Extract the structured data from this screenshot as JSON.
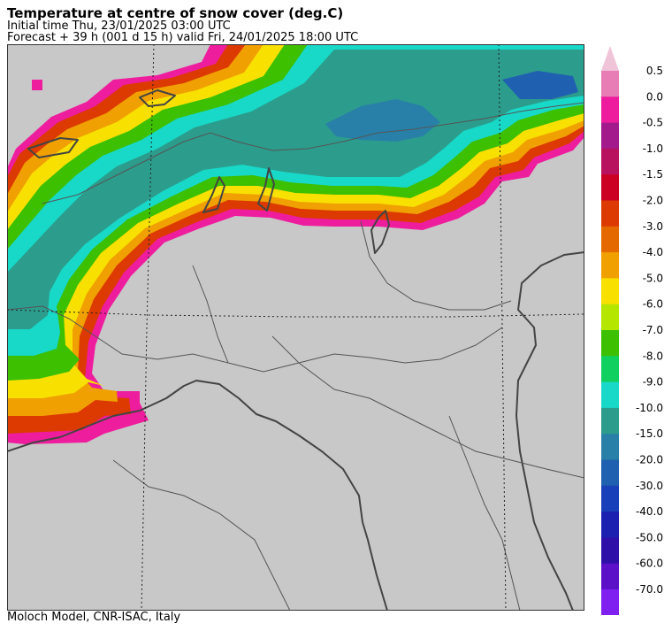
{
  "header": {
    "title": "Temperature at centre of snow cover (deg.C)",
    "initial_time": "Initial time  Thu, 23/01/2025  03:00 UTC",
    "forecast": "Forecast  +  39 h  (001 d 15 h)  valid Fri, 24/01/2025 18:00 UTC"
  },
  "credit": "Moloch Model, CNR-ISAC, Italy",
  "colors": {
    "land_no_snow": "#c8c8c8",
    "frame": "#333333",
    "coastline": "#444444",
    "borders": "#555555",
    "graticule": "#222222"
  },
  "legend": {
    "over_color": "#f0c4d8",
    "under_color": "#b07cf0",
    "classes": [
      {
        "label": "0.5",
        "color": "#e87cb4"
      },
      {
        "label": "0.0",
        "color": "#ee1d9d"
      },
      {
        "label": "-0.5",
        "color": "#a31a8c"
      },
      {
        "label": "-1.0",
        "color": "#b8125e"
      },
      {
        "label": "-1.5",
        "color": "#cc0022"
      },
      {
        "label": "-2.0",
        "color": "#dc3a00"
      },
      {
        "label": "-3.0",
        "color": "#e46a00"
      },
      {
        "label": "-4.0",
        "color": "#f0a000"
      },
      {
        "label": "-5.0",
        "color": "#f8e000"
      },
      {
        "label": "-6.0",
        "color": "#b4e600"
      },
      {
        "label": "-7.0",
        "color": "#3cc000"
      },
      {
        "label": "-8.0",
        "color": "#10d060"
      },
      {
        "label": "-9.0",
        "color": "#18d8c8"
      },
      {
        "label": "-10.0",
        "color": "#2c9c8c"
      },
      {
        "label": "-15.0",
        "color": "#2880a8"
      },
      {
        "label": "-20.0",
        "color": "#2060b0"
      },
      {
        "label": "-30.0",
        "color": "#1840b8"
      },
      {
        "label": "-40.0",
        "color": "#1c20b0"
      },
      {
        "label": "-50.0",
        "color": "#2e10a8"
      },
      {
        "label": "-60.0",
        "color": "#5c10c8"
      },
      {
        "label": "-70.0",
        "color": "#8020f0"
      }
    ]
  }
}
